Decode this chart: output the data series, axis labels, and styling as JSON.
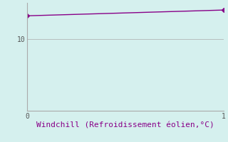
{
  "x": [
    0,
    1
  ],
  "y": [
    13.2,
    14.0
  ],
  "line_color": "#880088",
  "marker": "D",
  "markersize": 3,
  "background_color": "#d5f0ee",
  "grid_color": "#aaaaaa",
  "xlabel": "Windchill (Refroidissement éolien,°C)",
  "xlabel_color": "#880088",
  "xlabel_fontsize": 8,
  "tick_color": "#555555",
  "tick_labelsize": 7,
  "xlim": [
    0,
    1
  ],
  "ylim": [
    0,
    15
  ],
  "yticks": [
    10
  ],
  "ytick_labels": [
    "10"
  ],
  "xticks": [
    0,
    1
  ],
  "xtick_labels": [
    "0",
    "1"
  ],
  "linewidth": 1.0,
  "font_family": "monospace"
}
